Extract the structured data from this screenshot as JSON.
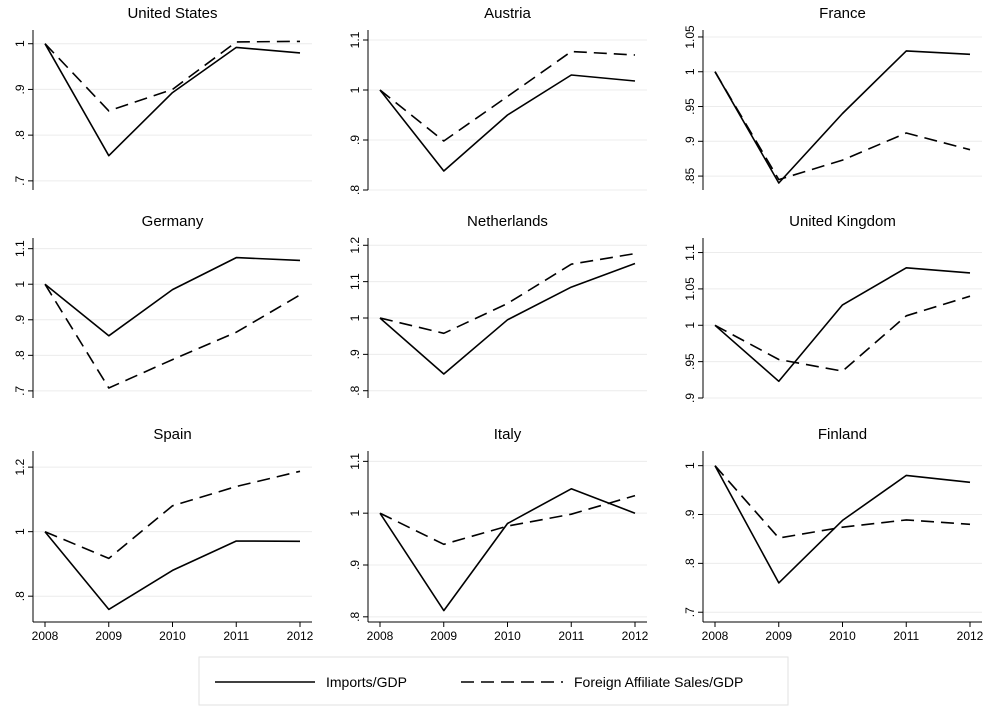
{
  "chart_data": {
    "type": "line",
    "layout": "3x3 small multiples",
    "x": [
      2008,
      2009,
      2010,
      2011,
      2012
    ],
    "x_tick_labels": [
      "2008",
      "2009",
      "2010",
      "2011",
      "2012"
    ],
    "grid": true,
    "legend": {
      "placement": "bottom-center",
      "entries": [
        {
          "label": "Imports/GDP",
          "style": "solid"
        },
        {
          "label": "Foreign Affiliate Sales/GDP",
          "style": "dashed"
        }
      ]
    },
    "panels": [
      {
        "title": "United States",
        "ylim": [
          0.68,
          1.03
        ],
        "yticks": [
          0.7,
          0.8,
          0.9,
          1.0
        ],
        "ytick_labels": [
          ".7",
          ".8",
          ".9",
          "1"
        ],
        "series": [
          {
            "name": "Imports/GDP",
            "values": [
              1.0,
              0.755,
              0.893,
              0.992,
              0.98
            ]
          },
          {
            "name": "Foreign Affiliate Sales/GDP",
            "values": [
              1.0,
              0.853,
              0.9,
              1.004,
              1.005
            ]
          }
        ]
      },
      {
        "title": "Austria",
        "ylim": [
          0.8,
          1.12
        ],
        "yticks": [
          0.8,
          0.9,
          1.0,
          1.1
        ],
        "ytick_labels": [
          ".8",
          ".9",
          "1",
          "1.1"
        ],
        "series": [
          {
            "name": "Imports/GDP",
            "values": [
              1.0,
              0.838,
              0.95,
              1.03,
              1.018
            ]
          },
          {
            "name": "Foreign Affiliate Sales/GDP",
            "values": [
              1.0,
              0.898,
              0.987,
              1.077,
              1.07
            ]
          }
        ]
      },
      {
        "title": "France",
        "ylim": [
          0.83,
          1.06
        ],
        "yticks": [
          0.85,
          0.9,
          0.95,
          1.0,
          1.05
        ],
        "ytick_labels": [
          ".85",
          ".9",
          ".95",
          "1",
          "1.05"
        ],
        "series": [
          {
            "name": "Imports/GDP",
            "values": [
              1.0,
              0.84,
              0.94,
              1.03,
              1.025
            ]
          },
          {
            "name": "Foreign Affiliate Sales/GDP",
            "values": [
              1.0,
              0.845,
              0.873,
              0.912,
              0.888
            ]
          }
        ]
      },
      {
        "title": "Germany",
        "ylim": [
          0.68,
          1.13
        ],
        "yticks": [
          0.7,
          0.8,
          0.9,
          1.0,
          1.1
        ],
        "ytick_labels": [
          ".7",
          ".8",
          ".9",
          "1",
          "1.1"
        ],
        "series": [
          {
            "name": "Imports/GDP",
            "values": [
              1.0,
              0.855,
              0.985,
              1.075,
              1.067
            ]
          },
          {
            "name": "Foreign Affiliate Sales/GDP",
            "values": [
              1.0,
              0.708,
              0.788,
              0.865,
              0.97
            ]
          }
        ]
      },
      {
        "title": "Netherlands",
        "ylim": [
          0.78,
          1.22
        ],
        "yticks": [
          0.8,
          0.9,
          1.0,
          1.1,
          1.2
        ],
        "ytick_labels": [
          ".8",
          ".9",
          "1",
          "1.1",
          "1.2"
        ],
        "series": [
          {
            "name": "Imports/GDP",
            "values": [
              1.0,
              0.846,
              0.995,
              1.085,
              1.15
            ]
          },
          {
            "name": "Foreign Affiliate Sales/GDP",
            "values": [
              1.0,
              0.958,
              1.04,
              1.148,
              1.177
            ]
          }
        ]
      },
      {
        "title": "United Kingdom",
        "ylim": [
          0.9,
          1.12
        ],
        "yticks": [
          0.9,
          0.95,
          1.0,
          1.05,
          1.1
        ],
        "ytick_labels": [
          ".9",
          ".95",
          "1",
          "1.05",
          "1.1"
        ],
        "series": [
          {
            "name": "Imports/GDP",
            "values": [
              1.0,
              0.923,
              1.028,
              1.079,
              1.072
            ]
          },
          {
            "name": "Foreign Affiliate Sales/GDP",
            "values": [
              1.0,
              0.953,
              0.937,
              1.013,
              1.04
            ]
          }
        ]
      },
      {
        "title": "Spain",
        "ylim": [
          0.72,
          1.25
        ],
        "yticks": [
          0.8,
          1.0,
          1.2
        ],
        "ytick_labels": [
          ".8",
          "1",
          "1.2"
        ],
        "series": [
          {
            "name": "Imports/GDP",
            "values": [
              1.0,
              0.759,
              0.88,
              0.971,
              0.97
            ]
          },
          {
            "name": "Foreign Affiliate Sales/GDP",
            "values": [
              1.0,
              0.917,
              1.08,
              1.14,
              1.187
            ]
          }
        ]
      },
      {
        "title": "Italy",
        "ylim": [
          0.79,
          1.12
        ],
        "yticks": [
          0.8,
          0.9,
          1.0,
          1.1
        ],
        "ytick_labels": [
          ".8",
          ".9",
          "1",
          "1.1"
        ],
        "series": [
          {
            "name": "Imports/GDP",
            "values": [
              1.0,
              0.812,
              0.98,
              1.047,
              1.0
            ]
          },
          {
            "name": "Foreign Affiliate Sales/GDP",
            "values": [
              1.0,
              0.94,
              0.975,
              0.998,
              1.034
            ]
          }
        ]
      },
      {
        "title": "Finland",
        "ylim": [
          0.68,
          1.03
        ],
        "yticks": [
          0.7,
          0.8,
          0.9,
          1.0
        ],
        "ytick_labels": [
          ".7",
          ".8",
          ".9",
          "1"
        ],
        "series": [
          {
            "name": "Imports/GDP",
            "values": [
              1.0,
              0.76,
              0.888,
              0.98,
              0.966
            ]
          },
          {
            "name": "Foreign Affiliate Sales/GDP",
            "values": [
              1.0,
              0.852,
              0.874,
              0.889,
              0.88
            ]
          }
        ]
      }
    ]
  }
}
